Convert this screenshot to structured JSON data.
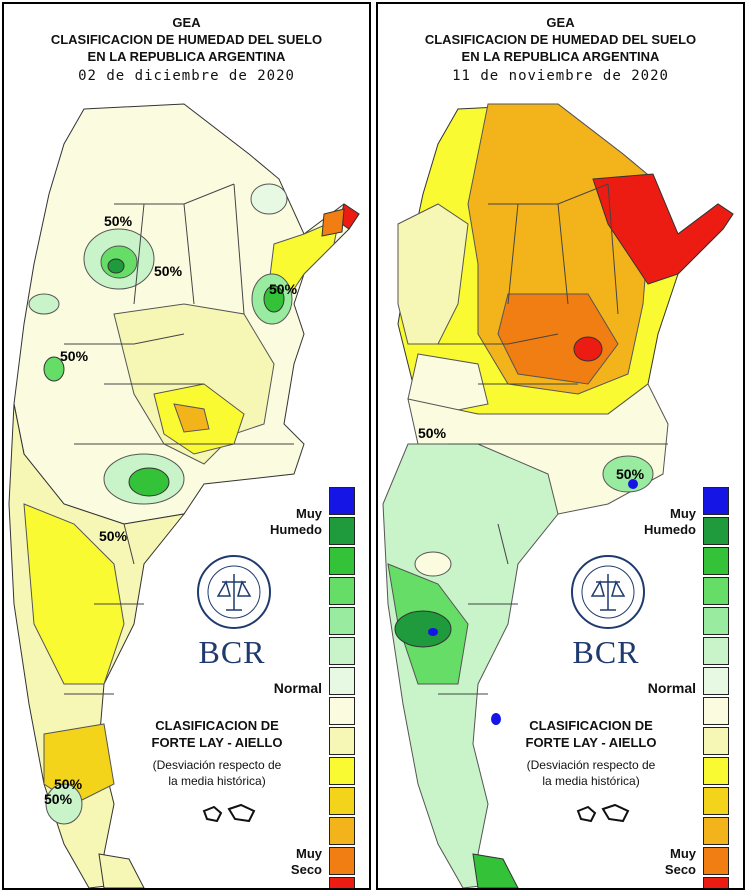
{
  "panels": [
    {
      "title_line1": "GEA",
      "title_line2": "CLASIFICACION DE HUMEDAD DEL SUELO",
      "title_line3": "EN LA REPUBLICA ARGENTINA",
      "date": "02 de diciembre de 2020",
      "contour_labels": [
        "50%",
        "50%",
        "50%",
        "50%",
        "50%",
        "50%",
        "50%"
      ]
    },
    {
      "title_line1": "GEA",
      "title_line2": "CLASIFICACION DE HUMEDAD DEL SUELO",
      "title_line3": "EN LA REPUBLICA ARGENTINA",
      "date": "11 de noviembre de 2020",
      "contour_labels": [
        "50%",
        "50%"
      ]
    }
  ],
  "legend": {
    "top_label_line1": "Muy",
    "top_label_line2": "Humedo",
    "middle_label": "Normal",
    "bottom_label_line1": "Muy",
    "bottom_label_line2": "Seco",
    "colors": [
      "#1515e6",
      "#1f9a3c",
      "#33c238",
      "#66dd66",
      "#99eba0",
      "#c9f3c9",
      "#e7f8e3",
      "#fbfbdf",
      "#f6f6b5",
      "#fafa33",
      "#f3d41b",
      "#f3b41b",
      "#f07e12",
      "#ec1c13"
    ]
  },
  "classification": {
    "title_line1": "CLASIFICACION DE",
    "title_line2": "FORTE LAY - AIELLO",
    "sub_line1": "(Desviación respecto de",
    "sub_line2": "la media histórica)"
  },
  "logo": {
    "text": "BCR",
    "seal_text": "BOLSA DE COMERCIO DE ROSARIO"
  }
}
